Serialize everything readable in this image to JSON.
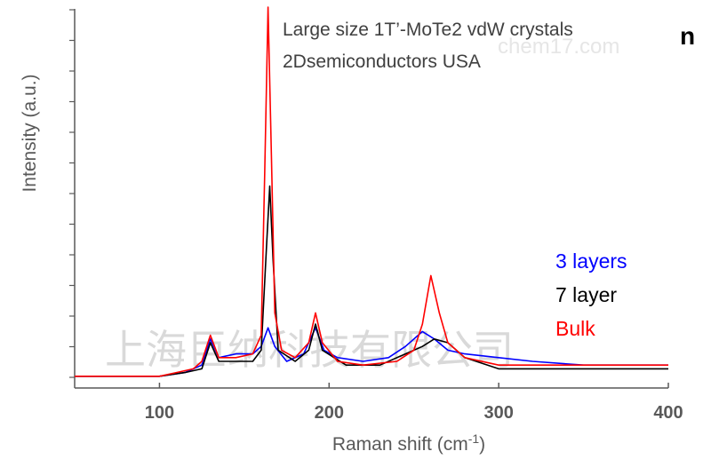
{
  "chart_data": {
    "type": "line",
    "title": "",
    "xlabel": "Raman shift (cm",
    "xlabel_sup": "-1",
    "xlabel_close": ")",
    "ylabel": "Intensity (a.u.)",
    "xlim": [
      50,
      400
    ],
    "ylim": [
      0,
      1
    ],
    "x_ticks": [
      100,
      200,
      300,
      400
    ],
    "grid": false,
    "legend_position": "right",
    "annotations": [
      "Large size 1T’-MoTe2 vdW crystals",
      "2Dsemiconductors USA"
    ],
    "series": [
      {
        "name": "3 layers",
        "color": "#0000ff",
        "points": [
          [
            50,
            0.01
          ],
          [
            100,
            0.01
          ],
          [
            115,
            0.02
          ],
          [
            125,
            0.04
          ],
          [
            130,
            0.11
          ],
          [
            135,
            0.06
          ],
          [
            145,
            0.07
          ],
          [
            155,
            0.07
          ],
          [
            160,
            0.09
          ],
          [
            164,
            0.14
          ],
          [
            168,
            0.09
          ],
          [
            175,
            0.05
          ],
          [
            185,
            0.07
          ],
          [
            192,
            0.14
          ],
          [
            197,
            0.08
          ],
          [
            205,
            0.06
          ],
          [
            220,
            0.05
          ],
          [
            235,
            0.06
          ],
          [
            245,
            0.09
          ],
          [
            255,
            0.13
          ],
          [
            262,
            0.11
          ],
          [
            270,
            0.08
          ],
          [
            280,
            0.07
          ],
          [
            300,
            0.06
          ],
          [
            320,
            0.05
          ],
          [
            350,
            0.04
          ],
          [
            380,
            0.04
          ],
          [
            400,
            0.04
          ]
        ]
      },
      {
        "name": "7 layer",
        "color": "#000000",
        "points": [
          [
            50,
            0.01
          ],
          [
            100,
            0.01
          ],
          [
            115,
            0.02
          ],
          [
            125,
            0.03
          ],
          [
            130,
            0.1
          ],
          [
            135,
            0.05
          ],
          [
            145,
            0.05
          ],
          [
            155,
            0.05
          ],
          [
            160,
            0.08
          ],
          [
            163,
            0.35
          ],
          [
            165,
            0.52
          ],
          [
            167,
            0.32
          ],
          [
            170,
            0.08
          ],
          [
            180,
            0.05
          ],
          [
            188,
            0.08
          ],
          [
            192,
            0.15
          ],
          [
            196,
            0.08
          ],
          [
            210,
            0.04
          ],
          [
            230,
            0.04
          ],
          [
            245,
            0.07
          ],
          [
            255,
            0.09
          ],
          [
            262,
            0.11
          ],
          [
            270,
            0.1
          ],
          [
            280,
            0.06
          ],
          [
            300,
            0.03
          ],
          [
            320,
            0.03
          ],
          [
            350,
            0.03
          ],
          [
            400,
            0.03
          ]
        ]
      },
      {
        "name": "Bulk",
        "color": "#ff0000",
        "points": [
          [
            50,
            0.01
          ],
          [
            100,
            0.01
          ],
          [
            110,
            0.02
          ],
          [
            120,
            0.03
          ],
          [
            125,
            0.05
          ],
          [
            130,
            0.12
          ],
          [
            135,
            0.06
          ],
          [
            145,
            0.06
          ],
          [
            155,
            0.07
          ],
          [
            160,
            0.12
          ],
          [
            162,
            0.55
          ],
          [
            164,
            1.0
          ],
          [
            166,
            0.6
          ],
          [
            168,
            0.18
          ],
          [
            172,
            0.08
          ],
          [
            180,
            0.06
          ],
          [
            188,
            0.1
          ],
          [
            192,
            0.18
          ],
          [
            196,
            0.1
          ],
          [
            205,
            0.05
          ],
          [
            220,
            0.04
          ],
          [
            240,
            0.05
          ],
          [
            250,
            0.08
          ],
          [
            255,
            0.15
          ],
          [
            260,
            0.28
          ],
          [
            265,
            0.18
          ],
          [
            270,
            0.1
          ],
          [
            280,
            0.06
          ],
          [
            300,
            0.04
          ],
          [
            320,
            0.04
          ],
          [
            350,
            0.04
          ],
          [
            380,
            0.04
          ],
          [
            400,
            0.04
          ]
        ]
      }
    ],
    "watermark": "上海巨纳科技有限公司",
    "watermark_url_fragment": "chem17.com",
    "edge_glyph": "n"
  }
}
